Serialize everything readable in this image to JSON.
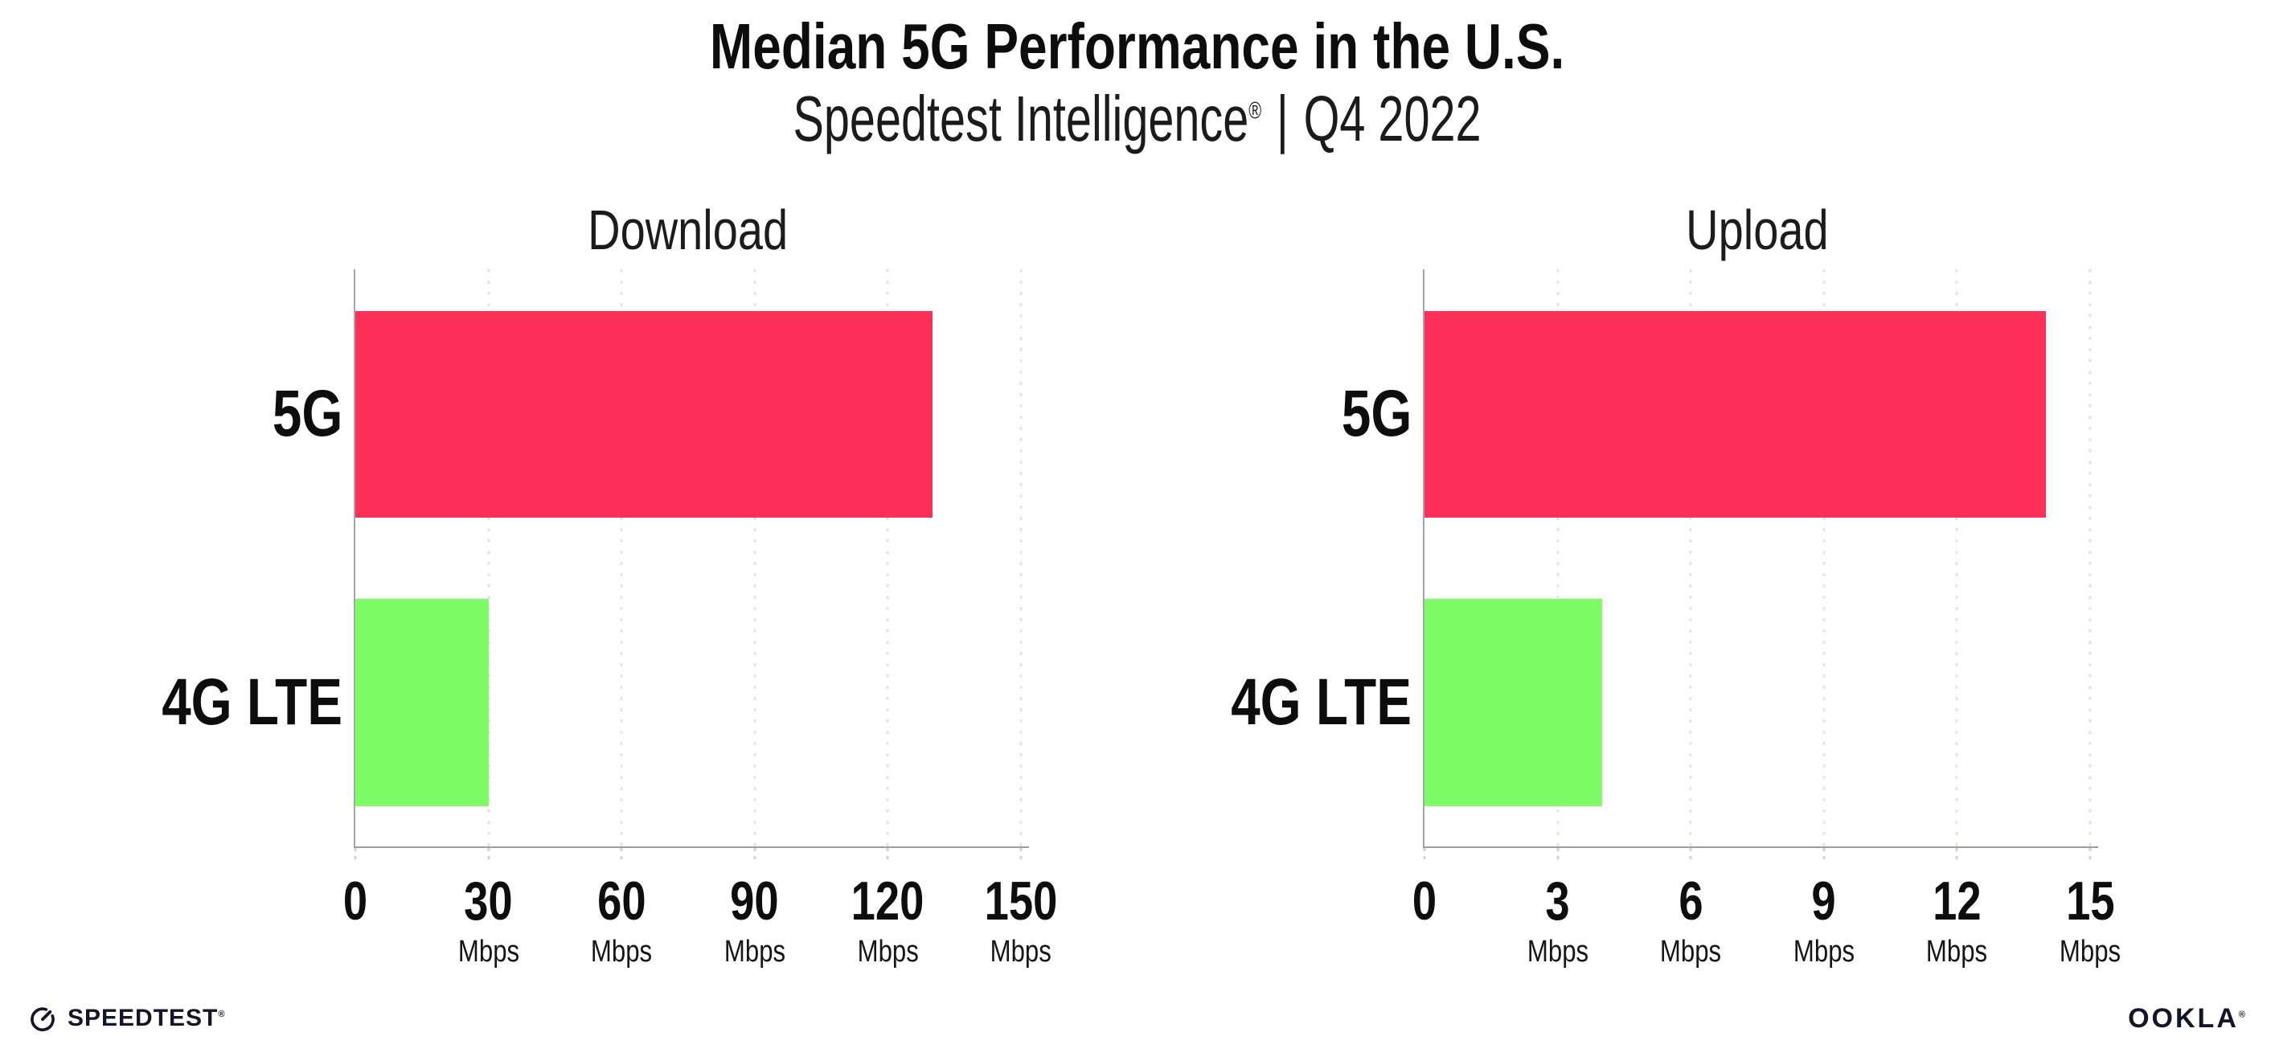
{
  "header": {
    "title": "Median 5G Performance in the U.S.",
    "subtitle_brand": "Speedtest Intelligence",
    "subtitle_reg_mark": "®",
    "subtitle_divider": "|",
    "subtitle_period": "Q4 2022"
  },
  "chart_data": [
    {
      "type": "bar",
      "orientation": "horizontal",
      "title": "Download",
      "categories": [
        "5G",
        "4G LTE"
      ],
      "values": [
        130,
        30
      ],
      "unit": "Mbps",
      "xlabel": "Mbps",
      "xlim": [
        0,
        150
      ],
      "xticks": [
        0,
        30,
        60,
        90,
        120,
        150
      ],
      "ticks": [
        {
          "label": "0",
          "unit": ""
        },
        {
          "label": "30",
          "unit": "Mbps"
        },
        {
          "label": "60",
          "unit": "Mbps"
        },
        {
          "label": "90",
          "unit": "Mbps"
        },
        {
          "label": "120",
          "unit": "Mbps"
        },
        {
          "label": "150",
          "unit": "Mbps"
        }
      ],
      "grid": "vertical-dotted",
      "legend": "none",
      "bar_colors": [
        "#fd2e57",
        "#7efc65"
      ]
    },
    {
      "type": "bar",
      "orientation": "horizontal",
      "title": "Upload",
      "categories": [
        "5G",
        "4G LTE"
      ],
      "values": [
        14,
        4
      ],
      "unit": "Mbps",
      "xlabel": "Mbps",
      "xlim": [
        0,
        15
      ],
      "xticks": [
        0,
        3,
        6,
        9,
        12,
        15
      ],
      "ticks": [
        {
          "label": "0",
          "unit": ""
        },
        {
          "label": "3",
          "unit": "Mbps"
        },
        {
          "label": "6",
          "unit": "Mbps"
        },
        {
          "label": "9",
          "unit": "Mbps"
        },
        {
          "label": "12",
          "unit": "Mbps"
        },
        {
          "label": "15",
          "unit": "Mbps"
        }
      ],
      "grid": "vertical-dotted",
      "legend": "none",
      "bar_colors": [
        "#fd2e57",
        "#7efc65"
      ]
    }
  ],
  "colors": {
    "bar_5g": "#fd2e57",
    "bar_4g_lte": "#7efc65",
    "axis": "#a5a5ae",
    "gridline": "#e2e3ee",
    "text": "#0d0d0d",
    "footer_text": "#141526",
    "background": "#ffffff"
  },
  "footer": {
    "speedtest_label": "SPEEDTEST",
    "speedtest_reg_mark": "®",
    "ookla_label": "OOKLA",
    "ookla_reg_mark": "®"
  }
}
